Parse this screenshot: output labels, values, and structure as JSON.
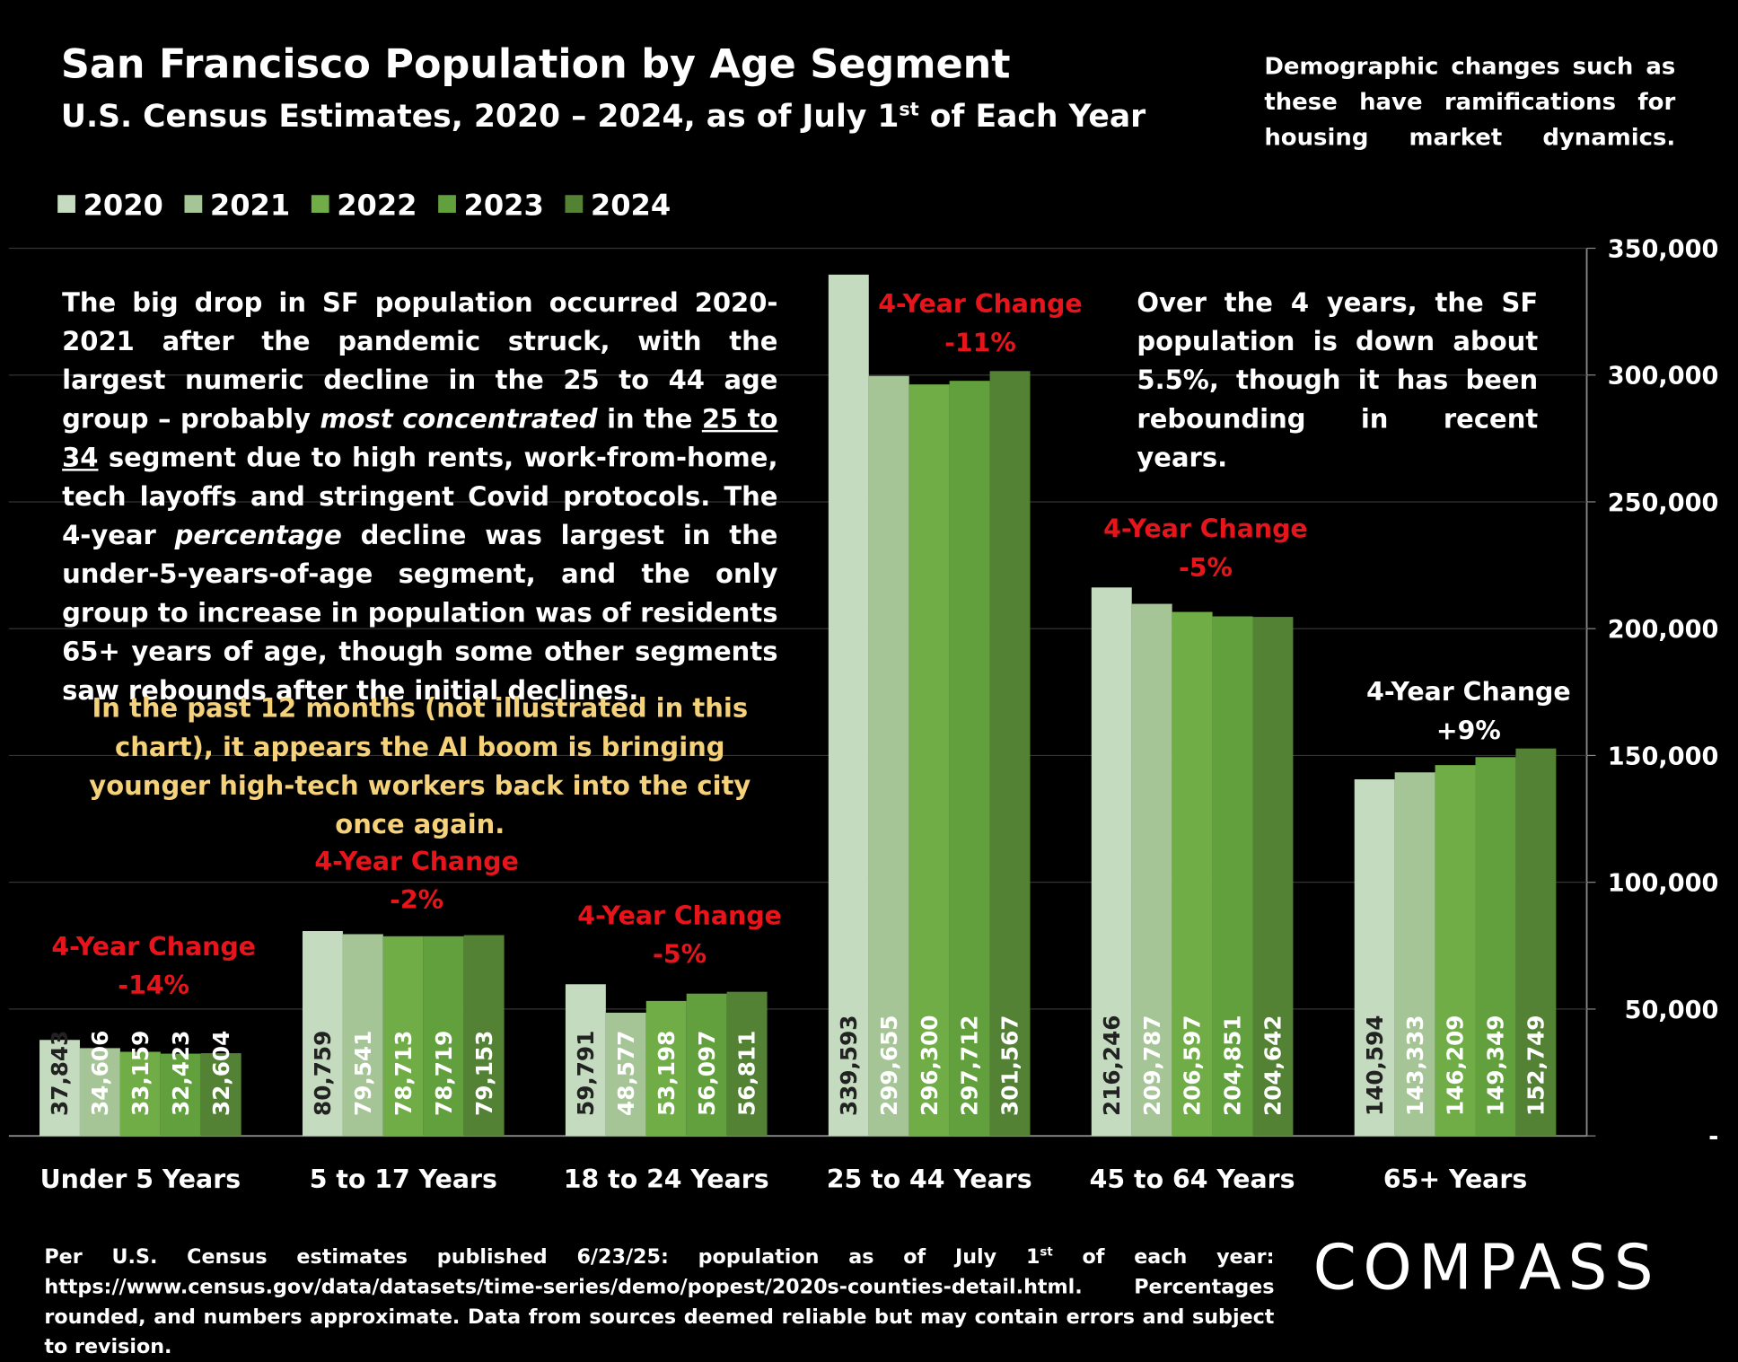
{
  "title": "San Francisco Population by Age Segment",
  "subtitle": [
    "U.S. Census Estimates, 2020 – 2024, as of July 1",
    "st",
    " of Each Year"
  ],
  "note_top_right": "Demographic changes such as these have ramifications for housing market dynamics.",
  "left_text": [
    "The big drop in SF population occurred 2020-2021 after the pandemic struck, with the largest numeric decline in the 25 to 44 age group – probably ",
    "most concentrated",
    " in the ",
    "25 to 34",
    " segment due to high rents, work-from-home, tech layoffs and stringent Covid protocols. The 4-year ",
    "percentage",
    " decline was largest in the under-5-years-of-age segment, and the only group to increase in population was of residents 65+ years of age, though some other segments saw rebounds after the initial declines."
  ],
  "yellow_text": "In the past 12 months (not illustrated in this chart), it appears the AI boom is bringing younger high-tech workers back into the city once again.",
  "right_text": "Over the 4 years, the SF population is down about 5.5%, though it has been rebounding in recent years.",
  "footnote": [
    "Per U.S. Census estimates published 6/23/25: population as of July 1",
    "st",
    " of each year: https://www.census.gov/data/datasets/time-series/demo/popest/2020s-counties-detail.html. Percentages rounded, and numbers approximate. Data from sources deemed reliable but may contain errors and subject to revision."
  ],
  "logo": "COMPASS",
  "chart_data": {
    "type": "bar",
    "categories": [
      "Under 5 Years",
      "5 to 17 Years",
      "18 to 24 Years",
      "25 to 44 Years",
      "45 to 64 Years",
      "65+ Years"
    ],
    "series": [
      {
        "name": "2020",
        "color": "#c5dbbf",
        "values": [
          37843,
          80759,
          59791,
          339593,
          216246,
          140594
        ],
        "value_labels": [
          "37,843",
          "80,759",
          "59,791",
          "339,593",
          "216,246",
          "140,594"
        ]
      },
      {
        "name": "2021",
        "color": "#a5c596",
        "values": [
          34606,
          79541,
          48577,
          299655,
          209787,
          143333
        ],
        "value_labels": [
          "34,606",
          "79,541",
          "48,577",
          "299,655",
          "209,787",
          "143,333"
        ]
      },
      {
        "name": "2022",
        "color": "#70ad47",
        "values": [
          33159,
          78713,
          53198,
          296300,
          206597,
          146209
        ],
        "value_labels": [
          "33,159",
          "78,713",
          "53,198",
          "296,300",
          "206,597",
          "146,209"
        ]
      },
      {
        "name": "2023",
        "color": "#62a03d",
        "values": [
          32423,
          78719,
          56097,
          297712,
          204851,
          149349
        ],
        "value_labels": [
          "32,423",
          "78,719",
          "56,097",
          "297,712",
          "204,851",
          "149,349"
        ]
      },
      {
        "name": "2024",
        "color": "#548235",
        "values": [
          32604,
          79153,
          56811,
          301567,
          204642,
          152749
        ],
        "value_labels": [
          "32,604",
          "79,153",
          "56,811",
          "301,567",
          "204,642",
          "152,749"
        ]
      }
    ],
    "ylim": [
      0,
      350000
    ],
    "yticks": [
      {
        "value": 0,
        "label": "-"
      },
      {
        "value": 50000,
        "label": "50,000"
      },
      {
        "value": 100000,
        "label": "100,000"
      },
      {
        "value": 150000,
        "label": "150,000"
      },
      {
        "value": 200000,
        "label": "200,000"
      },
      {
        "value": 250000,
        "label": "250,000"
      },
      {
        "value": 300000,
        "label": "300,000"
      },
      {
        "value": 350000,
        "label": "350,000"
      }
    ],
    "grid": true,
    "annotations": [
      {
        "title": "4-Year Change",
        "change": "-14%",
        "color": "#e8141b"
      },
      {
        "title": "4-Year Change",
        "change": "-2%",
        "color": "#e8141b"
      },
      {
        "title": "4-Year Change",
        "change": "-5%",
        "color": "#e8141b"
      },
      {
        "title": "4-Year Change",
        "change": "-11%",
        "color": "#e8141b"
      },
      {
        "title": "4-Year Change",
        "change": "-5%",
        "color": "#e8141b"
      },
      {
        "title": "4-Year Change",
        "change": "+9%",
        "color": "#ffffff"
      }
    ]
  }
}
